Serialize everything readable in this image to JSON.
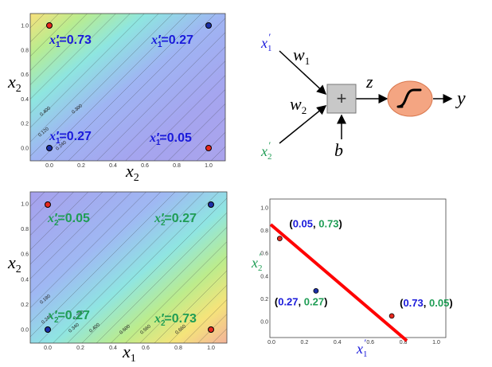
{
  "colors": {
    "blue_text": "#1a1adb",
    "green_text": "#1f9d55",
    "red_point": "#e8281e",
    "blue_point": "#1c2fa8",
    "sum_box": "#c8c8c8",
    "sigmoid_fill": "#f4a582",
    "line_red": "#ff0000"
  },
  "panel_tl": {
    "xlabel": "x",
    "xlabel_sub": "2",
    "ylabel": "x",
    "ylabel_sub": "2",
    "xticks": [
      "0.0",
      "0.2",
      "0.4",
      "0.6",
      "0.8",
      "1.0"
    ],
    "yticks": [
      "1.0",
      "0.8",
      "0.6",
      "0.4",
      "0.2",
      "0.0"
    ],
    "contour_labels": [
      "0.400",
      "0.300",
      "0.120",
      "0.240"
    ],
    "annotations": [
      {
        "sym": "x",
        "sub": "1",
        "val": "=0.73"
      },
      {
        "sym": "x",
        "sub": "1",
        "val": "=0.27"
      },
      {
        "sym": "x",
        "sub": "1",
        "val": "=0.27"
      },
      {
        "sym": "x",
        "sub": "1",
        "val": "=0.05"
      }
    ]
  },
  "panel_bl": {
    "xlabel": "x",
    "xlabel_sub": "1",
    "ylabel": "x",
    "ylabel_sub": "2",
    "xticks": [
      "0.0",
      "0.2",
      "0.4",
      "0.6",
      "0.8",
      "1.0"
    ],
    "yticks": [
      "1.0",
      "0.8",
      "0.6",
      "0.4",
      "0.2",
      "0.0"
    ],
    "contour_labels": [
      "0.180",
      "0.240",
      "0.280",
      "0.340",
      "0.400",
      "0.500",
      "0.560",
      "0.660"
    ],
    "annotations": [
      {
        "sym": "x",
        "sub": "2",
        "val": "=0.05"
      },
      {
        "sym": "x",
        "sub": "2",
        "val": "=0.27"
      },
      {
        "sym": "x",
        "sub": "2",
        "val": "=0.27"
      },
      {
        "sym": "x",
        "sub": "2",
        "val": "=0.73"
      }
    ]
  },
  "neuron": {
    "in1": "x",
    "in1_sub": "1",
    "in2": "x",
    "in2_sub": "2",
    "w1": "w",
    "w1_sub": "1",
    "w2": "w",
    "w2_sub": "2",
    "sum_symbol": "+",
    "bias": "b",
    "z": "z",
    "y": "y"
  },
  "panel_br": {
    "xlabel": "x",
    "xlabel_sub": "1",
    "ylabel": "x",
    "ylabel_sub": "2",
    "xticks": [
      "0.0",
      "0.2",
      "0.4",
      "0.6",
      "0.8",
      "1.0"
    ],
    "yticks": [
      "1.0",
      "0.8",
      "0.6",
      "0.4",
      "0.2",
      "0.0"
    ],
    "points": [
      {
        "x": 0.05,
        "y": 0.73,
        "a": "0.05",
        "b": "0.73"
      },
      {
        "x": 0.27,
        "y": 0.27,
        "a": "0.27",
        "b": "0.27"
      },
      {
        "x": 0.73,
        "y": 0.05,
        "a": "0.73",
        "b": "0.05"
      }
    ]
  }
}
